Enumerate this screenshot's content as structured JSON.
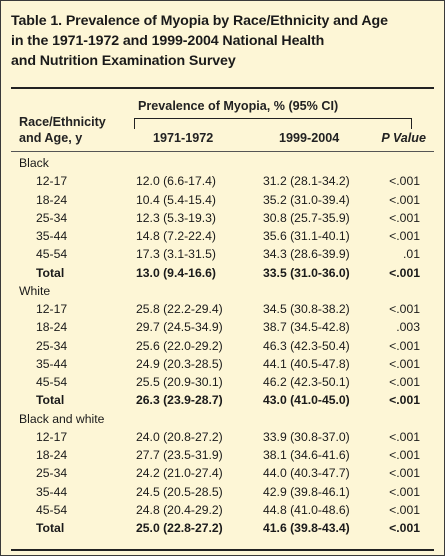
{
  "title": "Table 1. Prevalence of Myopia by Race/Ethnicity and Age in the 1971-1972 and 1999-2004 National Health and Nutrition Examination Survey",
  "title_lines": [
    "Table 1. Prevalence of Myopia by Race/Ethnicity and Age",
    "in the 1971-1972 and 1999-2004 National Health",
    "and Nutrition Examination Survey"
  ],
  "header": {
    "row_label_line1": "Race/Ethnicity",
    "row_label_line2": "and Age, y",
    "spanner": "Prevalence of Myopia, % (95% CI)",
    "col_1971": "1971-1972",
    "col_1999": "1999-2004",
    "col_p": "P Value"
  },
  "groups": [
    {
      "name": "Black",
      "rows": [
        {
          "age": "12-17",
          "y1971": "12.0 (6.6-17.4)",
          "y1999": "31.2 (28.1-34.2)",
          "p": "<.001"
        },
        {
          "age": "18-24",
          "y1971": "10.4 (5.4-15.4)",
          "y1999": "35.2 (31.0-39.4)",
          "p": "<.001"
        },
        {
          "age": "25-34",
          "y1971": "12.3 (5.3-19.3)",
          "y1999": "30.8 (25.7-35.9)",
          "p": "<.001"
        },
        {
          "age": "35-44",
          "y1971": "14.8 (7.2-22.4)",
          "y1999": "35.6 (31.1-40.1)",
          "p": "<.001"
        },
        {
          "age": "45-54",
          "y1971": "17.3 (3.1-31.5)",
          "y1999": "34.3 (28.6-39.9)",
          "p": ".01"
        }
      ],
      "total": {
        "label": "Total",
        "y1971": "13.0 (9.4-16.6)",
        "y1999": "33.5 (31.0-36.0)",
        "p": "<.001"
      }
    },
    {
      "name": "White",
      "rows": [
        {
          "age": "12-17",
          "y1971": "25.8 (22.2-29.4)",
          "y1999": "34.5 (30.8-38.2)",
          "p": "<.001"
        },
        {
          "age": "18-24",
          "y1971": "29.7 (24.5-34.9)",
          "y1999": "38.7 (34.5-42.8)",
          "p": ".003"
        },
        {
          "age": "25-34",
          "y1971": "25.6 (22.0-29.2)",
          "y1999": "46.3 (42.3-50.4)",
          "p": "<.001"
        },
        {
          "age": "35-44",
          "y1971": "24.9 (20.3-28.5)",
          "y1999": "44.1 (40.5-47.8)",
          "p": "<.001"
        },
        {
          "age": "45-54",
          "y1971": "25.5 (20.9-30.1)",
          "y1999": "46.2 (42.3-50.1)",
          "p": "<.001"
        }
      ],
      "total": {
        "label": "Total",
        "y1971": "26.3 (23.9-28.7)",
        "y1999": "43.0 (41.0-45.0)",
        "p": "<.001"
      }
    },
    {
      "name": "Black and white",
      "rows": [
        {
          "age": "12-17",
          "y1971": "24.0 (20.8-27.2)",
          "y1999": "33.9 (30.8-37.0)",
          "p": "<.001"
        },
        {
          "age": "18-24",
          "y1971": "27.7 (23.5-31.9)",
          "y1999": "38.1 (34.6-41.6)",
          "p": "<.001"
        },
        {
          "age": "25-34",
          "y1971": "24.2 (21.0-27.4)",
          "y1999": "44.0 (40.3-47.7)",
          "p": "<.001"
        },
        {
          "age": "35-44",
          "y1971": "24.5 (20.5-28.5)",
          "y1999": "42.9 (39.8-46.1)",
          "p": "<.001"
        },
        {
          "age": "45-54",
          "y1971": "24.8 (20.4-29.2)",
          "y1999": "44.8 (41.0-48.6)",
          "p": "<.001"
        }
      ],
      "total": {
        "label": "Total",
        "y1971": "25.0 (22.8-27.2)",
        "y1999": "41.6 (39.8-43.4)",
        "p": "<.001"
      }
    }
  ],
  "colors": {
    "background": "#fdf6d6",
    "text": "#1a1a1a"
  }
}
